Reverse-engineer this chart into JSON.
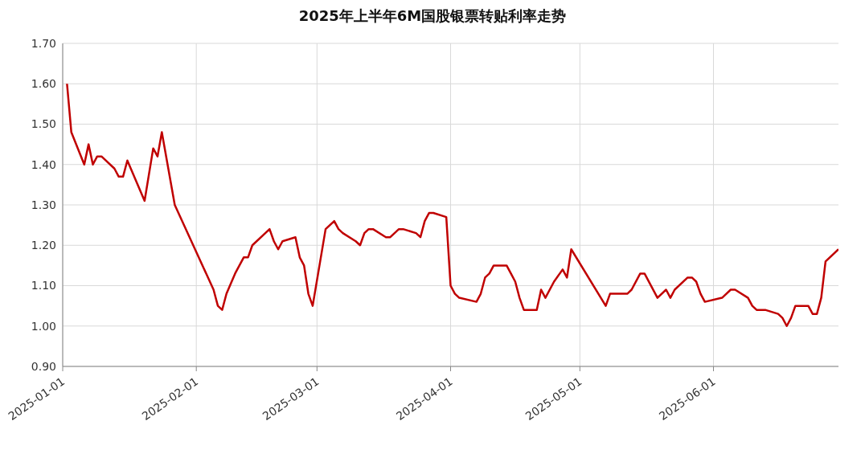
{
  "chart_data": {
    "type": "line",
    "title": "2025年上半年6M国股银票转贴利率走势",
    "x": [
      "2025-01-02",
      "2025-01-03",
      "2025-01-06",
      "2025-01-07",
      "2025-01-08",
      "2025-01-09",
      "2025-01-10",
      "2025-01-13",
      "2025-01-14",
      "2025-01-15",
      "2025-01-16",
      "2025-01-20",
      "2025-01-22",
      "2025-01-23",
      "2025-01-24",
      "2025-01-27",
      "2025-02-05",
      "2025-02-06",
      "2025-02-07",
      "2025-02-08",
      "2025-02-10",
      "2025-02-12",
      "2025-02-13",
      "2025-02-14",
      "2025-02-18",
      "2025-02-19",
      "2025-02-20",
      "2025-02-21",
      "2025-02-24",
      "2025-02-25",
      "2025-02-26",
      "2025-02-27",
      "2025-02-28",
      "2025-03-03",
      "2025-03-05",
      "2025-03-06",
      "2025-03-07",
      "2025-03-10",
      "2025-03-11",
      "2025-03-12",
      "2025-03-13",
      "2025-03-14",
      "2025-03-17",
      "2025-03-18",
      "2025-03-20",
      "2025-03-21",
      "2025-03-24",
      "2025-03-25",
      "2025-03-26",
      "2025-03-27",
      "2025-03-28",
      "2025-03-31",
      "2025-04-01",
      "2025-04-02",
      "2025-04-03",
      "2025-04-07",
      "2025-04-08",
      "2025-04-09",
      "2025-04-10",
      "2025-04-11",
      "2025-04-14",
      "2025-04-15",
      "2025-04-16",
      "2025-04-17",
      "2025-04-18",
      "2025-04-21",
      "2025-04-22",
      "2025-04-23",
      "2025-04-25",
      "2025-04-27",
      "2025-04-28",
      "2025-04-29",
      "2025-05-07",
      "2025-05-08",
      "2025-05-12",
      "2025-05-13",
      "2025-05-15",
      "2025-05-16",
      "2025-05-19",
      "2025-05-21",
      "2025-05-22",
      "2025-05-23",
      "2025-05-26",
      "2025-05-27",
      "2025-05-28",
      "2025-05-29",
      "2025-05-30",
      "2025-06-03",
      "2025-06-05",
      "2025-06-06",
      "2025-06-09",
      "2025-06-10",
      "2025-06-11",
      "2025-06-13",
      "2025-06-16",
      "2025-06-17",
      "2025-06-18",
      "2025-06-19",
      "2025-06-20",
      "2025-06-23",
      "2025-06-24",
      "2025-06-25",
      "2025-06-26",
      "2025-06-27",
      "2025-06-30"
    ],
    "series": [
      {
        "color": "#c00000",
        "values": [
          1.6,
          1.48,
          1.4,
          1.45,
          1.4,
          1.42,
          1.42,
          1.39,
          1.37,
          1.37,
          1.41,
          1.31,
          1.44,
          1.42,
          1.48,
          1.3,
          1.09,
          1.05,
          1.04,
          1.08,
          1.13,
          1.17,
          1.17,
          1.2,
          1.24,
          1.21,
          1.19,
          1.21,
          1.22,
          1.17,
          1.15,
          1.08,
          1.05,
          1.24,
          1.26,
          1.24,
          1.23,
          1.21,
          1.2,
          1.23,
          1.24,
          1.24,
          1.22,
          1.22,
          1.24,
          1.24,
          1.23,
          1.22,
          1.26,
          1.28,
          1.28,
          1.27,
          1.1,
          1.08,
          1.07,
          1.06,
          1.08,
          1.12,
          1.13,
          1.15,
          1.15,
          1.13,
          1.11,
          1.07,
          1.04,
          1.04,
          1.09,
          1.07,
          1.11,
          1.14,
          1.12,
          1.19,
          1.05,
          1.08,
          1.08,
          1.09,
          1.13,
          1.13,
          1.07,
          1.09,
          1.07,
          1.09,
          1.12,
          1.12,
          1.11,
          1.08,
          1.06,
          1.07,
          1.09,
          1.09,
          1.07,
          1.05,
          1.04,
          1.04,
          1.03,
          1.02,
          1.0,
          1.02,
          1.05,
          1.05,
          1.03,
          1.03,
          1.07,
          1.16,
          1.19
        ]
      }
    ],
    "xlim": [
      "2025-01-01",
      "2025-06-30"
    ],
    "xticks": [
      "2025-01-01",
      "2025-02-01",
      "2025-03-01",
      "2025-04-01",
      "2025-05-01",
      "2025-06-01"
    ],
    "ylim": [
      0.9,
      1.7
    ],
    "yticks": [
      {
        "value": 0.9,
        "label": "0.90"
      },
      {
        "value": 1.0,
        "label": "1.00"
      },
      {
        "value": 1.1,
        "label": "1.10"
      },
      {
        "value": 1.2,
        "label": "1.20"
      },
      {
        "value": 1.3,
        "label": "1.30"
      },
      {
        "value": 1.4,
        "label": "1.40"
      },
      {
        "value": 1.5,
        "label": "1.50"
      },
      {
        "value": 1.6,
        "label": "1.60"
      },
      {
        "value": 1.7,
        "label": "1.70"
      }
    ],
    "grid": true,
    "marker": "none",
    "line_style": "solid"
  }
}
